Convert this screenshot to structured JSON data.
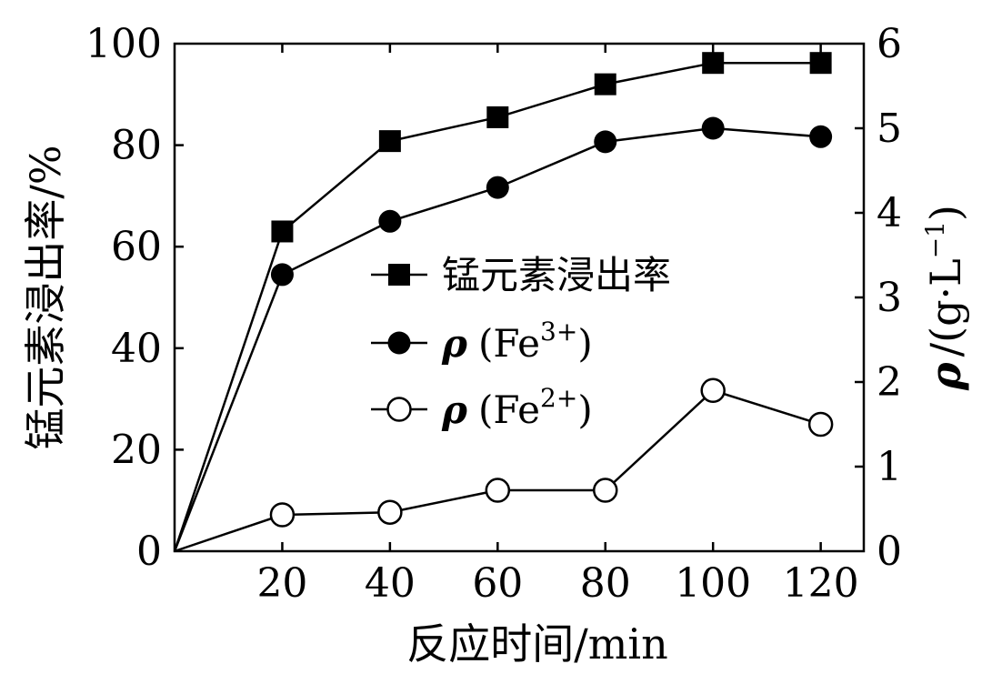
{
  "chart_data": {
    "type": "line",
    "title": "",
    "xlabel": "反应时间/min",
    "ylabel_left": "锰元素浸出率/%",
    "ylabel_right": "(g·L",
    "ylabel_right_symbol": "ρ",
    "ylabel_right_slash": "/",
    "ylabel_right_exp": "−1",
    "ylabel_right_close": ")",
    "xlim": [
      0,
      128
    ],
    "ylim_left": [
      0,
      100
    ],
    "ylim_right": [
      0,
      6
    ],
    "x_ticks": [
      20,
      40,
      60,
      80,
      100,
      120
    ],
    "x_tick_labels": [
      "20",
      "40",
      "60",
      "80",
      "100",
      "120"
    ],
    "x_origin_label": "0",
    "y_left_ticks": [
      0,
      20,
      40,
      60,
      80,
      100
    ],
    "y_left_tick_labels": [
      "0",
      "20",
      "40",
      "60",
      "80",
      "100"
    ],
    "y_right_ticks": [
      0,
      1,
      2,
      3,
      4,
      5,
      6
    ],
    "y_right_tick_labels": [
      "0",
      "1",
      "2",
      "3",
      "4",
      "5",
      "6"
    ],
    "grid": false,
    "legend_position": "center",
    "series": [
      {
        "name": "锰元素浸出率",
        "legend_label": "锰元素浸出率",
        "axis": "left",
        "marker": "filled-square",
        "x": [
          0,
          20,
          40,
          60,
          80,
          100,
          120
        ],
        "values": [
          0,
          63,
          80.8,
          85.5,
          92,
          96.2,
          96.2
        ]
      },
      {
        "name": "ρ(Fe3+)",
        "legend_prefix": "ρ",
        "legend_label": "(Fe",
        "legend_sup": "3+",
        "legend_close": ")",
        "axis": "right",
        "marker": "filled-circle",
        "x": [
          0,
          20,
          40,
          60,
          80,
          100,
          120
        ],
        "values": [
          0,
          3.27,
          3.9,
          4.3,
          4.84,
          5.0,
          4.9
        ]
      },
      {
        "name": "ρ(Fe2+)",
        "legend_prefix": "ρ",
        "legend_label": "(Fe",
        "legend_sup": "2+",
        "legend_close": ")",
        "axis": "right",
        "marker": "open-circle",
        "x": [
          0,
          20,
          40,
          60,
          80,
          100,
          120
        ],
        "values": [
          0,
          0.43,
          0.46,
          0.72,
          0.72,
          1.9,
          1.5
        ]
      }
    ]
  }
}
